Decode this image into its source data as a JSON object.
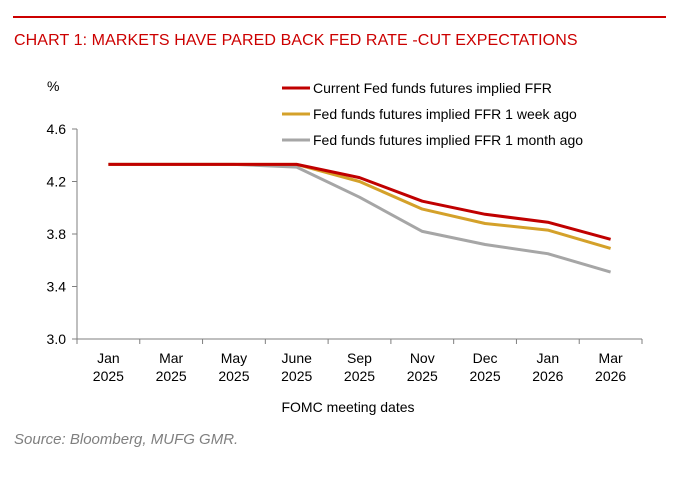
{
  "title": "CHART 1: MARKETS HAVE PARED BACK FED RATE -CUT EXPECTATIONS",
  "source": "Source: Bloomberg, MUFG GMR.",
  "colors": {
    "title": "#cc0000",
    "rule": "#cc0000"
  },
  "chart_data": {
    "type": "line",
    "title": "CHART 1: MARKETS HAVE PARED BACK FED RATE -CUT EXPECTATIONS",
    "xlabel": "FOMC meeting dates",
    "ylabel": "%",
    "ylim": [
      3.0,
      4.6
    ],
    "yticks": [
      3.0,
      3.4,
      3.8,
      4.2,
      4.6
    ],
    "yticks_labels": [
      "3.0",
      "3.4",
      "3.8",
      "4.2",
      "4.6"
    ],
    "categories": [
      [
        "Jan",
        "2025"
      ],
      [
        "Mar",
        "2025"
      ],
      [
        "May",
        "2025"
      ],
      [
        "June",
        "2025"
      ],
      [
        "Sep",
        "2025"
      ],
      [
        "Nov",
        "2025"
      ],
      [
        "Dec",
        "2025"
      ],
      [
        "Jan",
        "2026"
      ],
      [
        "Mar",
        "2026"
      ]
    ],
    "grid": false,
    "legend_position": "top-right",
    "series": [
      {
        "name": "Current Fed funds futures implied FFR",
        "color": "#c00000",
        "values": [
          4.33,
          4.33,
          4.33,
          4.33,
          4.23,
          4.05,
          3.95,
          3.89,
          3.76
        ]
      },
      {
        "name": "Fed funds futures implied FFR 1 week ago",
        "color": "#d4a12a",
        "values": [
          4.33,
          4.33,
          4.33,
          4.33,
          4.2,
          3.99,
          3.88,
          3.83,
          3.69
        ]
      },
      {
        "name": "Fed funds futures implied FFR 1 month ago",
        "color": "#a6a6a6",
        "values": [
          4.33,
          4.33,
          4.33,
          4.31,
          4.08,
          3.82,
          3.72,
          3.65,
          3.51
        ]
      }
    ]
  }
}
